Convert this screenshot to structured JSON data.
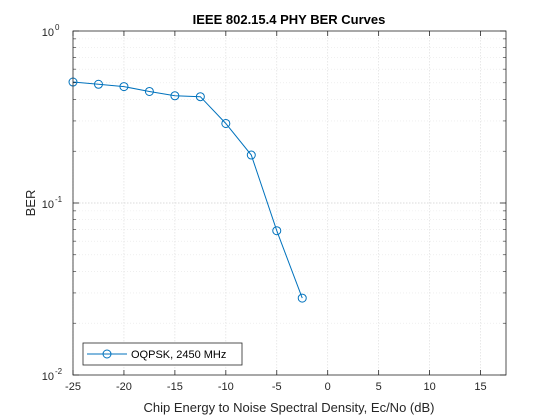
{
  "chart_data": {
    "type": "line",
    "title": "IEEE 802.15.4 PHY BER Curves",
    "xlabel": "Chip Energy to Noise Spectral Density, Ec/No (dB)",
    "ylabel": "BER",
    "xlim": [
      -25,
      17.5
    ],
    "ylim": [
      0.01,
      1
    ],
    "yscale": "log",
    "grid": "on (major and minor)",
    "xticks": [
      -25,
      -20,
      -15,
      -10,
      -5,
      0,
      5,
      10,
      15
    ],
    "yticks": [
      {
        "value": 0.01,
        "base": "10",
        "exp": "-2"
      },
      {
        "value": 0.1,
        "base": "10",
        "exp": "-1"
      },
      {
        "value": 1,
        "base": "10",
        "exp": "0"
      }
    ],
    "series": [
      {
        "name": "OQPSK, 2450 MHz",
        "color": "#0072BD",
        "marker": "circle",
        "x": [
          -25,
          -22.5,
          -20,
          -17.5,
          -15,
          -12.5,
          -10,
          -7.5,
          -5,
          -2.5
        ],
        "y": [
          0.505,
          0.49,
          0.475,
          0.445,
          0.42,
          0.415,
          0.29,
          0.19,
          0.069,
          0.028
        ]
      }
    ],
    "legend_position": "bottom-left"
  }
}
